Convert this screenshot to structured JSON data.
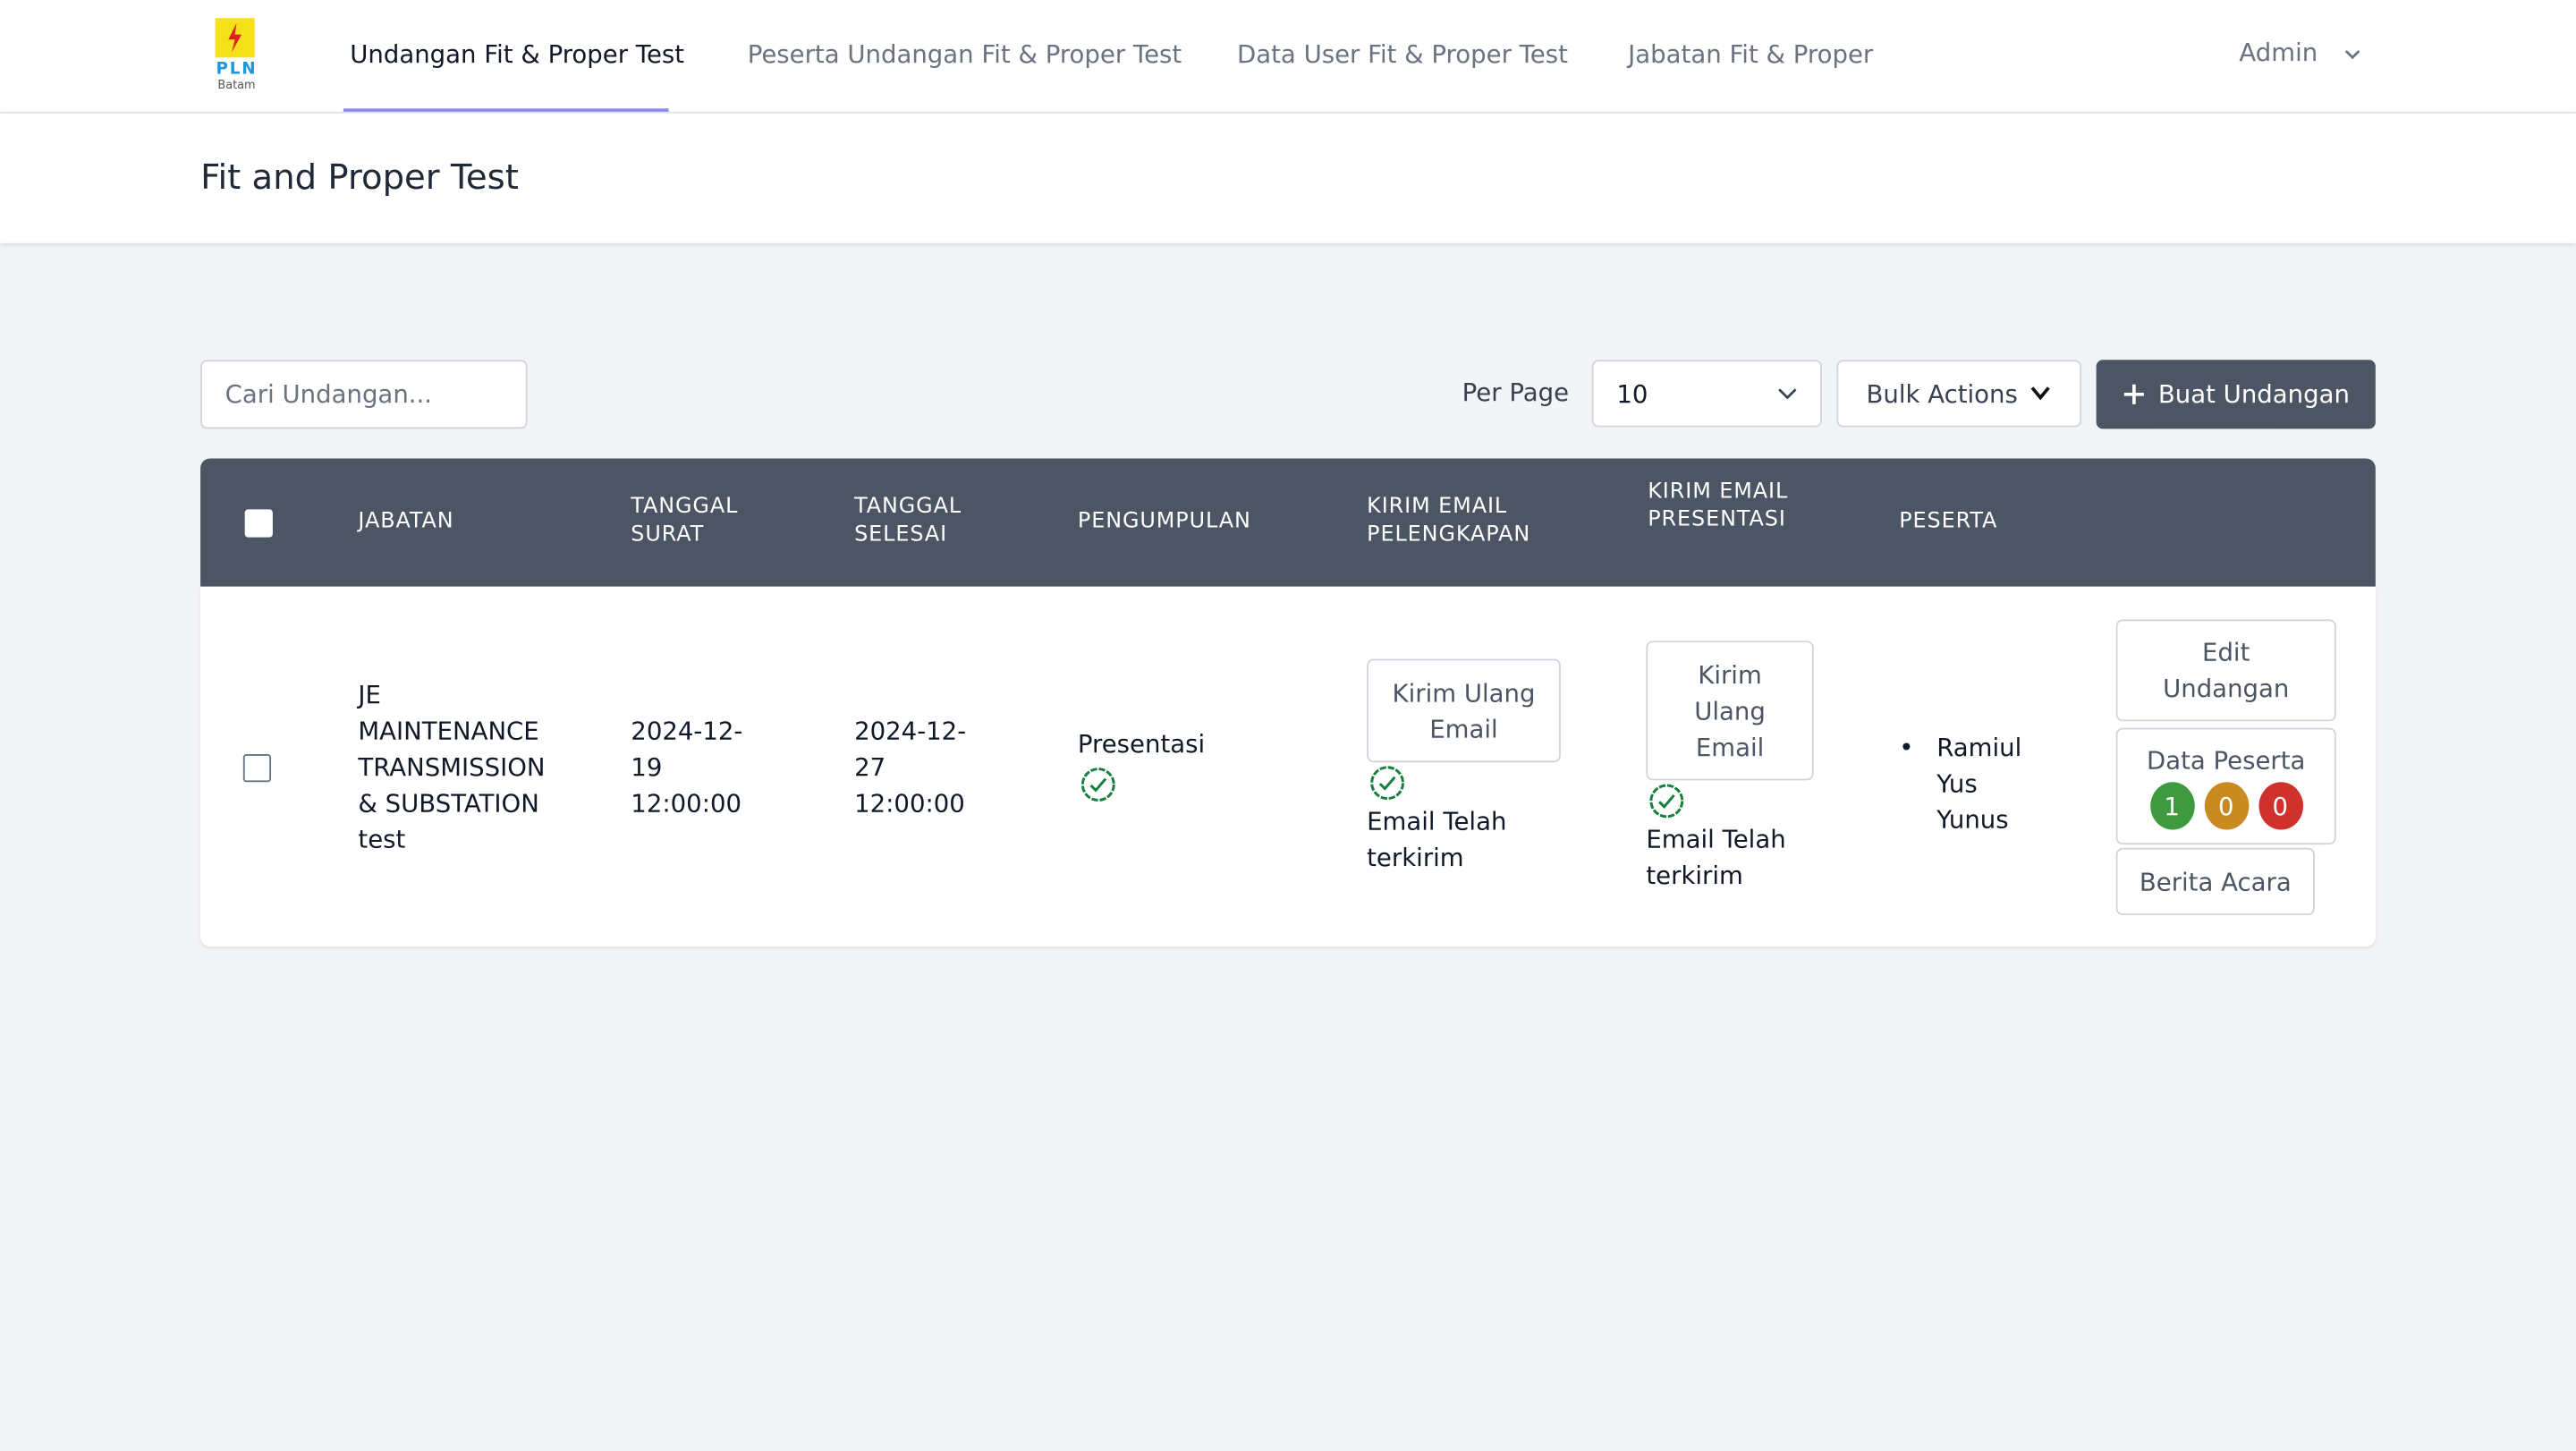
{
  "logo": {
    "text": "PLN",
    "subtext": "Batam"
  },
  "nav": {
    "items": [
      "Undangan Fit & Proper Test",
      "Peserta Undangan Fit & Proper Test",
      "Data User Fit & Proper Test",
      "Jabatan Fit & Proper"
    ],
    "user": "Admin"
  },
  "header": {
    "title": "Fit and Proper Test"
  },
  "toolbar": {
    "search_placeholder": "Cari Undangan...",
    "per_page_label": "Per Page",
    "per_page_value": "10",
    "bulk_actions": "Bulk Actions",
    "create_button": "Buat Undangan"
  },
  "table": {
    "headers": [
      "Jabatan",
      "Tanggal Surat",
      "Tanggal Selesai",
      "Pengumpulan",
      "Kirim Email Pelengkapan",
      "Kirim Email Presentasi",
      "Peserta"
    ],
    "rows": [
      {
        "jabatan": "JE MAINTENANCE TRANSMISSION & SUBSTATION test",
        "tanggal_surat": "2024-12-19 12:00:00",
        "tanggal_selesai": "2024-12-27 12:00:00",
        "pengumpulan": "Presentasi",
        "pelengkapan_button": "Kirim Ulang Email",
        "pelengkapan_status": "Email Telah terkirim",
        "presentasi_button": "Kirim Ulang Email",
        "presentasi_status": "Email Telah terkirim",
        "peserta": [
          "Ramiul Yus Yunus"
        ],
        "edit_button": "Edit Undangan",
        "data_peserta_button": "Data Peserta",
        "counts": [
          "1",
          "0",
          "0"
        ],
        "berita_acara_button": "Berita Acara"
      }
    ]
  }
}
